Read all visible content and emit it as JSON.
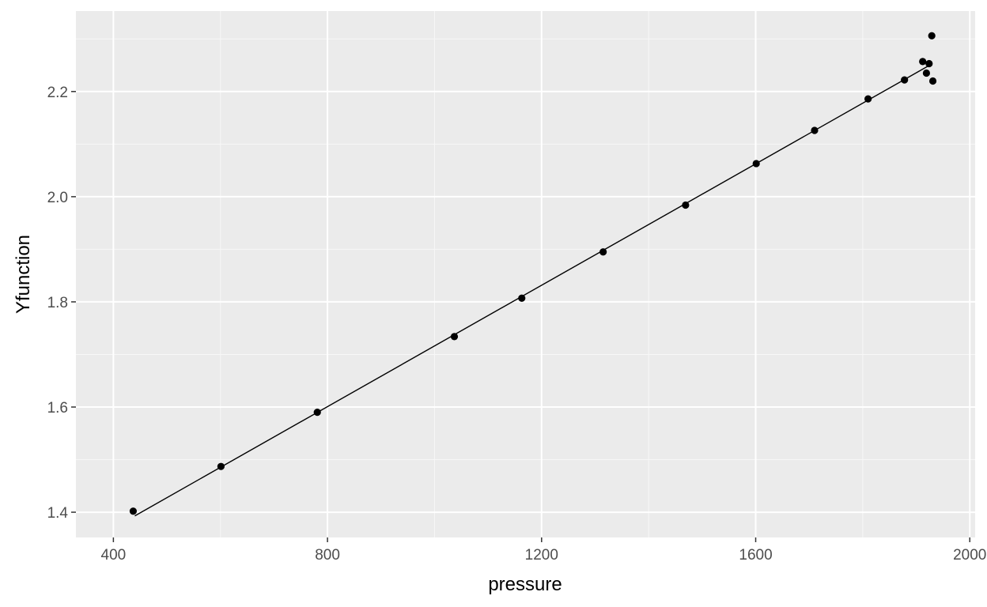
{
  "chart_data": {
    "type": "scatter",
    "xlabel": "pressure",
    "ylabel": "Yfunction",
    "xlim": [
      330,
      2010
    ],
    "ylim": [
      1.352,
      2.353
    ],
    "x_major_ticks": [
      400,
      800,
      1200,
      1600,
      2000
    ],
    "x_minor_ticks": [
      600,
      1000,
      1400,
      1800
    ],
    "y_major_ticks": [
      1.4,
      1.6,
      1.8,
      2.0,
      2.2
    ],
    "y_minor_ticks": [
      1.5,
      1.7,
      1.9,
      2.1,
      2.3
    ],
    "x_tick_labels": [
      "400",
      "800",
      "1200",
      "1600",
      "2000"
    ],
    "y_tick_labels": [
      "1.4",
      "1.6",
      "1.8",
      "2.0",
      "2.2"
    ],
    "grid": true,
    "series": [
      {
        "points": [
          {
            "x": 437,
            "y": 1.402
          },
          {
            "x": 601,
            "y": 1.487
          },
          {
            "x": 781,
            "y": 1.59
          },
          {
            "x": 1037,
            "y": 1.734
          },
          {
            "x": 1163,
            "y": 1.807
          },
          {
            "x": 1315,
            "y": 1.895
          },
          {
            "x": 1469,
            "y": 1.984
          },
          {
            "x": 1601,
            "y": 2.063
          },
          {
            "x": 1710,
            "y": 2.126
          },
          {
            "x": 1810,
            "y": 2.186
          },
          {
            "x": 1878,
            "y": 2.222
          },
          {
            "x": 1912,
            "y": 2.257
          },
          {
            "x": 1919,
            "y": 2.235
          },
          {
            "x": 1924,
            "y": 2.253
          },
          {
            "x": 1929,
            "y": 2.306
          },
          {
            "x": 1931,
            "y": 2.22
          }
        ]
      }
    ],
    "fit_line": {
      "x": [
        440,
        1925
      ],
      "y": [
        1.393,
        2.25
      ]
    }
  }
}
